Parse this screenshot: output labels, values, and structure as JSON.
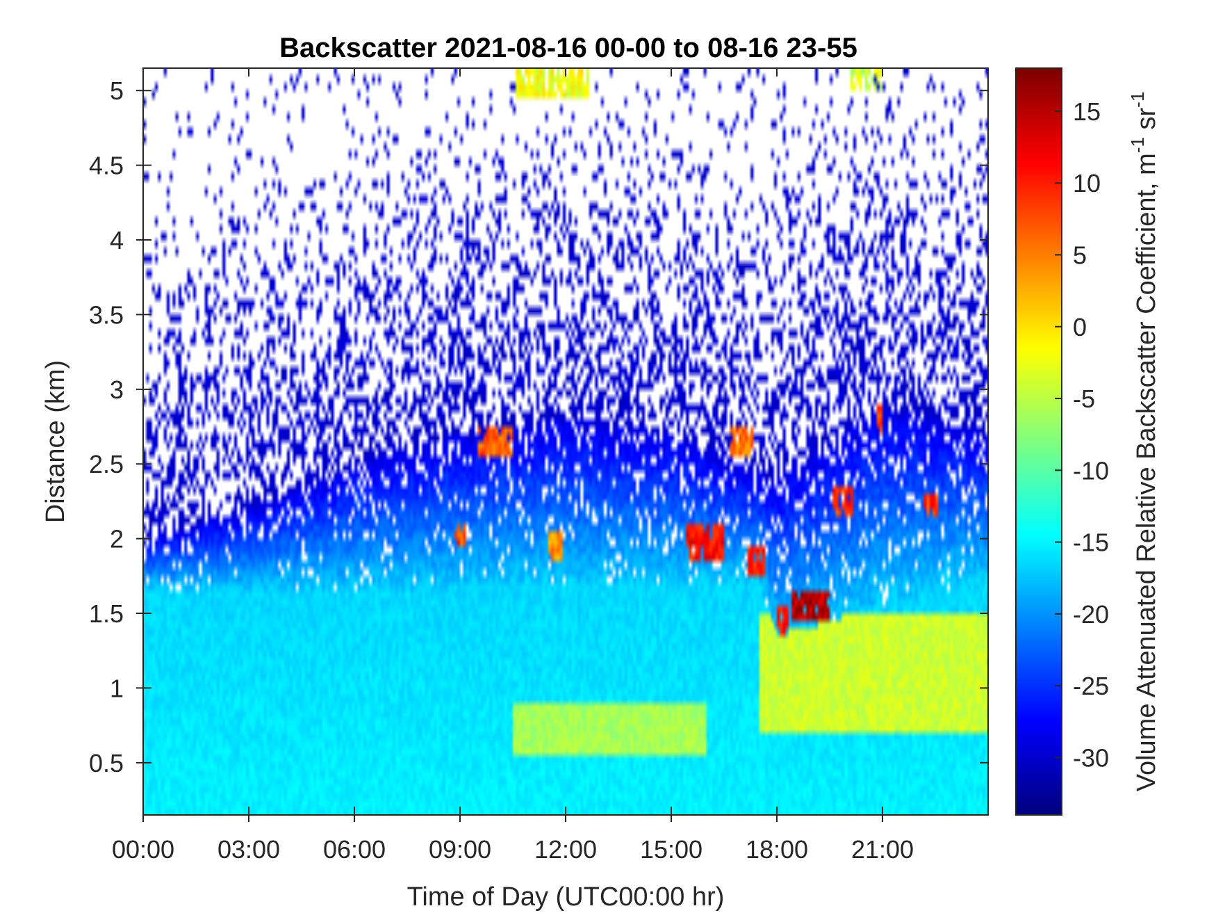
{
  "chart_data": {
    "type": "heatmap",
    "title": "Backscatter 2021-08-16 00-00 to 08-16 23-55",
    "xlabel": "Time of Day (UTC00:00 hr)",
    "ylabel": "Distance (km)",
    "colorbar_label": "Volume Attenuated Relative Backscatter Coefficient, m",
    "colorbar_label_sup1": "-1",
    "colorbar_label_mid": " sr",
    "colorbar_label_sup2": "-1",
    "colormap": "jet",
    "xlim_hours": [
      0,
      24
    ],
    "ylim_km": [
      0.15,
      5.15
    ],
    "clim": [
      -34,
      18
    ],
    "x_ticks": [
      {
        "value": 0,
        "label": "00:00"
      },
      {
        "value": 3,
        "label": "03:00"
      },
      {
        "value": 6,
        "label": "06:00"
      },
      {
        "value": 9,
        "label": "09:00"
      },
      {
        "value": 12,
        "label": "12:00"
      },
      {
        "value": 15,
        "label": "15:00"
      },
      {
        "value": 18,
        "label": "18:00"
      },
      {
        "value": 21,
        "label": "21:00"
      }
    ],
    "y_ticks": [
      {
        "value": 0.5,
        "label": "0.5"
      },
      {
        "value": 1,
        "label": "1"
      },
      {
        "value": 1.5,
        "label": "1.5"
      },
      {
        "value": 2,
        "label": "2"
      },
      {
        "value": 2.5,
        "label": "2.5"
      },
      {
        "value": 3,
        "label": "3"
      },
      {
        "value": 3.5,
        "label": "3.5"
      },
      {
        "value": 4,
        "label": "4"
      },
      {
        "value": 4.5,
        "label": "4.5"
      },
      {
        "value": 5,
        "label": "5"
      }
    ],
    "c_ticks": [
      {
        "value": -30,
        "label": "-30"
      },
      {
        "value": -25,
        "label": "-25"
      },
      {
        "value": -20,
        "label": "-20"
      },
      {
        "value": -15,
        "label": "-15"
      },
      {
        "value": -10,
        "label": "-10"
      },
      {
        "value": -5,
        "label": "-5"
      },
      {
        "value": 0,
        "label": "0"
      },
      {
        "value": 5,
        "label": "5"
      },
      {
        "value": 10,
        "label": "10"
      },
      {
        "value": 15,
        "label": "15"
      }
    ],
    "field_description": {
      "surface_layer_top_km": [
        {
          "t": 0,
          "z": 1.65
        },
        {
          "t": 6,
          "z": 1.65
        },
        {
          "t": 12,
          "z": 1.7
        },
        {
          "t": 17.5,
          "z": 1.7
        },
        {
          "t": 18,
          "z": 1.35
        },
        {
          "t": 24,
          "z": 1.75
        }
      ],
      "surface_layer_value": -15,
      "enhanced_region": [
        {
          "t0": 10.5,
          "t1": 16,
          "z0": 0.55,
          "z1": 0.9,
          "value": -6
        },
        {
          "t0": 17.5,
          "t1": 24,
          "z0": 0.7,
          "z1": 1.5,
          "value": -4
        }
      ],
      "aerosol_layer_tops_km": [
        {
          "t": 0,
          "z": 2.0
        },
        {
          "t": 3,
          "z": 2.2
        },
        {
          "t": 6,
          "z": 2.5
        },
        {
          "t": 9,
          "z": 2.7
        },
        {
          "t": 12,
          "z": 2.8
        },
        {
          "t": 15,
          "z": 2.7
        },
        {
          "t": 18,
          "z": 2.4
        },
        {
          "t": 21,
          "z": 2.9
        },
        {
          "t": 24,
          "z": 2.7
        }
      ],
      "low_signal_value": -30,
      "cloud_cells": [
        {
          "t0": 9.5,
          "t1": 10.5,
          "z0": 2.55,
          "z1": 2.75,
          "value": 7
        },
        {
          "t0": 8.8,
          "t1": 9.2,
          "z0": 1.95,
          "z1": 2.1,
          "value": 8
        },
        {
          "t0": 11.5,
          "t1": 11.9,
          "z0": 1.85,
          "z1": 2.05,
          "value": 4
        },
        {
          "t0": 15.4,
          "t1": 16.5,
          "z0": 1.85,
          "z1": 2.1,
          "value": 11
        },
        {
          "t0": 17.2,
          "t1": 17.7,
          "z0": 1.75,
          "z1": 1.95,
          "value": 10
        },
        {
          "t0": 16.7,
          "t1": 17.3,
          "z0": 2.55,
          "z1": 2.75,
          "value": 6
        },
        {
          "t0": 18.0,
          "t1": 18.3,
          "z0": 1.35,
          "z1": 1.55,
          "value": 12
        },
        {
          "t0": 18.4,
          "t1": 19.5,
          "z0": 1.45,
          "z1": 1.65,
          "value": 15
        },
        {
          "t0": 19.6,
          "t1": 20.2,
          "z0": 2.15,
          "z1": 2.35,
          "value": 9
        },
        {
          "t0": 20.8,
          "t1": 21.0,
          "z0": 2.7,
          "z1": 2.9,
          "value": 8
        },
        {
          "t0": 22.2,
          "t1": 22.6,
          "z0": 2.15,
          "z1": 2.3,
          "value": 9
        },
        {
          "t0": 10.6,
          "t1": 12.7,
          "z0": 4.95,
          "z1": 5.15,
          "value": -2
        },
        {
          "t0": 20.1,
          "t1": 21.0,
          "z0": 5.0,
          "z1": 5.15,
          "value": -4
        }
      ]
    }
  }
}
